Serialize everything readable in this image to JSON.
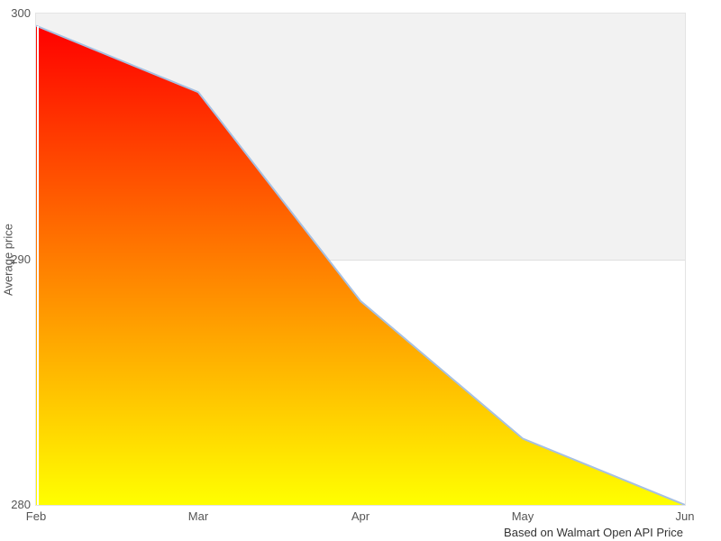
{
  "chart_data": {
    "type": "area",
    "categories": [
      "Feb",
      "Mar",
      "Apr",
      "May",
      "Jun"
    ],
    "values": [
      299.5,
      296.8,
      288.3,
      282.7,
      280.0
    ],
    "title": "",
    "xlabel": "",
    "ylabel": "Average price",
    "caption": "Based on Walmart Open API Price",
    "ylim": [
      280,
      300
    ],
    "yticks": [
      280,
      290,
      300
    ],
    "legend": "none",
    "grid": "single horizontal gridline at 290",
    "plot_bands": [
      {
        "from": 290,
        "to": 300,
        "color": "#f2f2f2"
      }
    ],
    "line_color": "#a6c0e2",
    "fill_gradient": [
      "#ff0000",
      "#ffff00"
    ],
    "plot_border_color": "#e4e4e4",
    "gridline_color": "#e0e0e0",
    "tick_label_color": "#555555",
    "caption_color": "#333333"
  }
}
